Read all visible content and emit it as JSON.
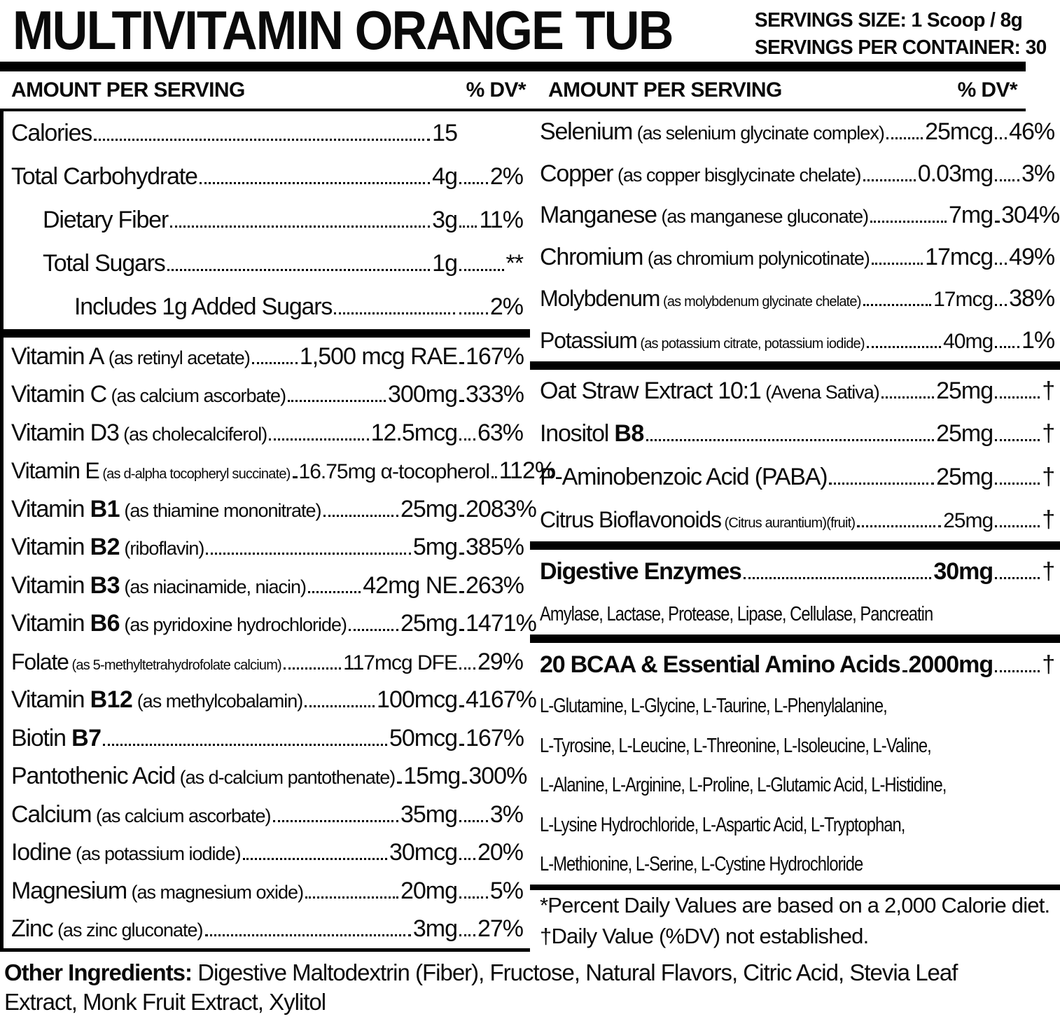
{
  "header": {
    "title": "MULTIVITAMIN ORANGE TUB",
    "servings_size": "SERVINGS SIZE: 1 Scoop / 8g",
    "servings_per_container": "SERVINGS PER CONTAINER: 30"
  },
  "column_header": {
    "amount_label": "AMOUNT PER SERVING",
    "dv_label": "% DV*"
  },
  "left_column": {
    "sections": [
      {
        "rows": [
          {
            "name": "Calories",
            "amount": "15",
            "dv": ""
          },
          {
            "name": "Total Carbohydrate",
            "amount": "4g",
            "dv": "2%"
          },
          {
            "name": "Dietary Fiber",
            "amount": "3g",
            "dv": "11%",
            "indent": 1
          },
          {
            "name": "Total Sugars",
            "amount": "1g",
            "dv": "**",
            "indent": 1
          },
          {
            "name": "Includes 1g Added Sugars",
            "amount": "",
            "dv": "2%",
            "indent": 2
          }
        ]
      },
      {
        "rows": [
          {
            "name": "Vitamin A",
            "note": "(as retinyl acetate)",
            "amount": "1,500 mcg RAE",
            "dv": "167%"
          },
          {
            "name": "Vitamin C",
            "note": "(as calcium ascorbate)",
            "amount": "300mg",
            "dv": "333%"
          },
          {
            "name": "Vitamin D3",
            "note": "(as cholecalciferol)",
            "amount": "12.5mcg",
            "dv": "63%"
          },
          {
            "name": "Vitamin E",
            "note": "(as d-alpha tocopheryl succinate)",
            "note_small": true,
            "tight": true,
            "amount": "16.75mg α-tocopherol",
            "dv": "112%"
          },
          {
            "name": "Vitamin",
            "bold_part": "B1",
            "note": "(as thiamine mononitrate)",
            "amount": "25mg",
            "dv": "2083%"
          },
          {
            "name": "Vitamin",
            "bold_part": "B2",
            "note": "(riboflavin)",
            "amount": "5mg",
            "dv": "385%"
          },
          {
            "name": "Vitamin",
            "bold_part": "B3",
            "note": "(as niacinamide, niacin)",
            "amount": "42mg NE",
            "dv": "263%"
          },
          {
            "name": "Vitamin",
            "bold_part": "B6",
            "note": "(as pyridoxine hydrochloride)",
            "amount": "25mg",
            "dv": "1471%"
          },
          {
            "name": "Folate",
            "note": "(as 5-methyltetrahydrofolate calcium)",
            "note_small": true,
            "tight": true,
            "amount": "117mcg DFE",
            "dv": "29%"
          },
          {
            "name": "Vitamin",
            "bold_part": "B12",
            "note": "(as methylcobalamin)",
            "amount": "100mcg",
            "dv": "4167%"
          },
          {
            "name": "Biotin",
            "bold_part": "B7",
            "amount": "50mcg",
            "dv": "167%"
          },
          {
            "name": "Pantothenic Acid",
            "note": "(as d-calcium pantothenate)",
            "amount": "15mg",
            "dv": "300%"
          },
          {
            "name": "Calcium",
            "note": "(as calcium ascorbate)",
            "amount": "35mg",
            "dv": "3%"
          },
          {
            "name": "Iodine",
            "note": "(as potassium iodide)",
            "amount": "30mcg",
            "dv": "20%"
          },
          {
            "name": "Magnesium",
            "note": "(as magnesium oxide)",
            "amount": "20mg",
            "dv": "5%"
          },
          {
            "name": "Zinc",
            "note": "(as zinc gluconate)",
            "amount": "3mg",
            "dv": "27%"
          }
        ]
      }
    ]
  },
  "right_column": {
    "sections": [
      {
        "rows": [
          {
            "name": "Selenium",
            "note": "(as selenium glycinate complex)",
            "amount": "25mcg",
            "dv": "46%"
          },
          {
            "name": "Copper",
            "note": "(as copper bisglycinate chelate)",
            "amount": "0.03mg",
            "dv": "3%"
          },
          {
            "name": "Manganese",
            "note": "(as manganese gluconate)",
            "amount": "7mg",
            "dv": "304%"
          },
          {
            "name": "Chromium",
            "note": "(as chromium polynicotinate)",
            "amount": "17mcg",
            "dv": "49%"
          },
          {
            "name": "Molybdenum",
            "note": "(as molybdenum glycinate chelate)",
            "note_small": true,
            "tight": true,
            "amount": "17mcg",
            "dv": "38%"
          },
          {
            "name": "Potassium",
            "note": "(as potassium citrate, potassium iodide)",
            "note_small": true,
            "tight": true,
            "amount": "40mg",
            "dv": "1%"
          }
        ]
      },
      {
        "rows": [
          {
            "name": "Oat Straw Extract 10:1",
            "note": "(Avena Sativa)",
            "amount": "25mg",
            "dv": "†"
          },
          {
            "name": "Inositol",
            "bold_part": "B8",
            "amount": "25mg",
            "dv": "†"
          },
          {
            "name": "P-Aminobenzoic Acid (PABA)",
            "amount": "25mg",
            "dv": "†"
          },
          {
            "name": "Citrus Bioflavonoids",
            "note": "(Citrus aurantium)(fruit)",
            "note_small": true,
            "tight": true,
            "amount": "25mg",
            "dv": "†"
          }
        ]
      },
      {
        "rows": [
          {
            "name": "Digestive Enzymes",
            "bold": true,
            "amount": "30mg",
            "dv": "†"
          }
        ],
        "lines": [
          "Amylase, Lactase, Protease, Lipase, Cellulase, Pancreatin"
        ]
      },
      {
        "rows": [
          {
            "name": "20 BCAA & Essential Amino Acids",
            "bold": true,
            "amount": "2000mg",
            "dv": "†"
          }
        ],
        "lines": [
          "L-Glutamine, L-Glycine, L-Taurine, L-Phenylalanine,",
          "L-Tyrosine, L-Leucine, L-Threonine, L-Isoleucine,  L-Valine,",
          "L-Alanine, L-Arginine, L-Proline, L-Glutamic Acid, L-Histidine,",
          "L-Lysine Hydrochloride, L-Aspartic Acid, L-Tryptophan,",
          "L-Methionine, L-Serine, L-Cystine Hydrochloride"
        ]
      },
      {
        "footnotes": [
          "*Percent Daily Values are based on a 2,000 Calorie diet.",
          "†Daily Value (%DV) not established."
        ]
      }
    ]
  },
  "footer": {
    "other_ingredients_label": "Other Ingredients:",
    "other_ingredients_text": " Digestive Maltodextrin (Fiber), Fructose, Natural Flavors, Citric Acid, Stevia Leaf Extract, Monk Fruit Extract, Xylitol"
  }
}
